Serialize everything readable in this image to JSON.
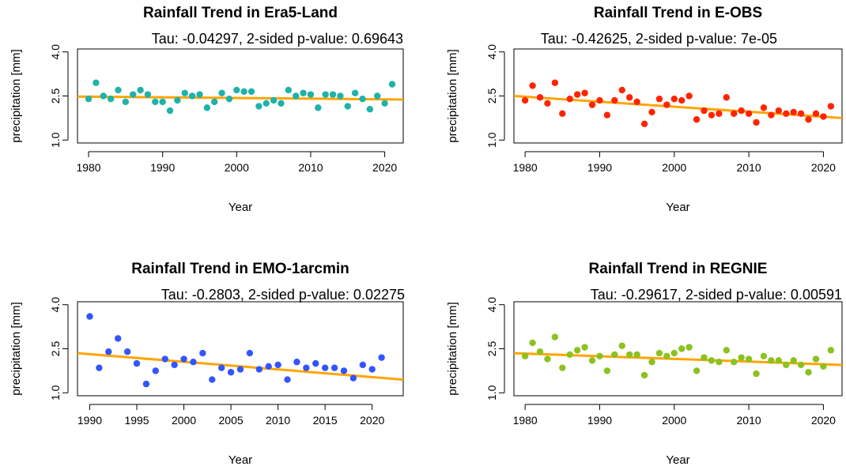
{
  "chart_data": [
    {
      "type": "scatter",
      "title": "Rainfall Trend in Era5-Land",
      "subtitle": "Tau: -0.04297, 2-sided p-value: 0.69643",
      "xlabel": "Year",
      "ylabel": "precipitation [mm]",
      "xlim": [
        1978.5,
        2022.5
      ],
      "ylim": [
        0.9,
        4.1
      ],
      "xticks": [
        "1980",
        "1990",
        "2000",
        "2010",
        "2020"
      ],
      "yticks": [
        "1.0",
        "2.5",
        "4.0"
      ],
      "grid": false,
      "point_color": "#20b2aa",
      "trend_color": "#ffa500",
      "trend": {
        "x": [
          1978.5,
          2022.5
        ],
        "y": [
          2.48,
          2.38
        ]
      },
      "series": [
        {
          "x": [
            1980,
            1981,
            1982,
            1983,
            1984,
            1985,
            1986,
            1987,
            1988,
            1989,
            1990,
            1991,
            1992,
            1993,
            1994,
            1995,
            1996,
            1997,
            1998,
            1999,
            2000,
            2001,
            2002,
            2003,
            2004,
            2005,
            2006,
            2007,
            2008,
            2009,
            2010,
            2011,
            2012,
            2013,
            2014,
            2015,
            2016,
            2017,
            2018,
            2019,
            2020,
            2021
          ],
          "y": [
            2.4,
            2.95,
            2.5,
            2.4,
            2.7,
            2.3,
            2.55,
            2.7,
            2.55,
            2.3,
            2.3,
            2.0,
            2.35,
            2.6,
            2.5,
            2.55,
            2.1,
            2.3,
            2.6,
            2.4,
            2.7,
            2.65,
            2.65,
            2.15,
            2.25,
            2.35,
            2.25,
            2.7,
            2.5,
            2.6,
            2.55,
            2.1,
            2.55,
            2.55,
            2.5,
            2.15,
            2.6,
            2.4,
            2.05,
            2.5,
            2.25,
            2.9
          ]
        }
      ]
    },
    {
      "type": "scatter",
      "title": "Rainfall Trend in E-OBS",
      "subtitle": "Tau: -0.42625, 2-sided p-value: 7e-05",
      "xlabel": "Year",
      "ylabel": "precipitation [mm]",
      "xlim": [
        1978.5,
        2022.5
      ],
      "ylim": [
        0.9,
        4.1
      ],
      "xticks": [
        "1980",
        "1990",
        "2000",
        "2010",
        "2020"
      ],
      "yticks": [
        "1.0",
        "2.5",
        "4.0"
      ],
      "grid": false,
      "point_color": "#ff2400",
      "trend_color": "#ffa500",
      "trend": {
        "x": [
          1978.5,
          2022.5
        ],
        "y": [
          2.5,
          1.75
        ]
      },
      "series": [
        {
          "x": [
            1980,
            1981,
            1982,
            1983,
            1984,
            1985,
            1986,
            1987,
            1988,
            1989,
            1990,
            1991,
            1992,
            1993,
            1994,
            1995,
            1996,
            1997,
            1998,
            1999,
            2000,
            2001,
            2002,
            2003,
            2004,
            2005,
            2006,
            2007,
            2008,
            2009,
            2010,
            2011,
            2012,
            2013,
            2014,
            2015,
            2016,
            2017,
            2018,
            2019,
            2020,
            2021
          ],
          "y": [
            2.35,
            2.85,
            2.45,
            2.25,
            2.95,
            1.9,
            2.4,
            2.55,
            2.6,
            2.2,
            2.35,
            1.85,
            2.35,
            2.7,
            2.45,
            2.3,
            1.55,
            1.95,
            2.4,
            2.2,
            2.4,
            2.35,
            2.5,
            1.7,
            2.0,
            1.85,
            1.9,
            2.45,
            1.9,
            2.0,
            1.9,
            1.6,
            2.1,
            1.85,
            2.0,
            1.9,
            1.95,
            1.9,
            1.7,
            1.9,
            1.8,
            2.15
          ]
        }
      ]
    },
    {
      "type": "scatter",
      "title": "Rainfall Trend in EMO-1arcmin",
      "subtitle": "Tau: -0.2803, 2-sided p-value: 0.02275",
      "xlabel": "Year",
      "ylabel": "precipitation [mm]",
      "xlim": [
        1988.7,
        2023.3
      ],
      "ylim": [
        0.9,
        4.1
      ],
      "xticks": [
        "1990",
        "1995",
        "2000",
        "2005",
        "2010",
        "2015",
        "2020"
      ],
      "yticks": [
        "1.0",
        "2.5",
        "4.0"
      ],
      "grid": false,
      "point_color": "#3355ff",
      "trend_color": "#ffa500",
      "trend": {
        "x": [
          1988.7,
          2023.3
        ],
        "y": [
          2.35,
          1.45
        ]
      },
      "series": [
        {
          "x": [
            1990,
            1991,
            1992,
            1993,
            1994,
            1995,
            1996,
            1997,
            1998,
            1999,
            2000,
            2001,
            2002,
            2003,
            2004,
            2005,
            2006,
            2007,
            2008,
            2009,
            2010,
            2011,
            2012,
            2013,
            2014,
            2015,
            2016,
            2017,
            2018,
            2019,
            2020,
            2021
          ],
          "y": [
            3.6,
            1.85,
            2.4,
            2.85,
            2.4,
            2.0,
            1.3,
            1.75,
            2.15,
            1.95,
            2.15,
            2.05,
            2.35,
            1.45,
            1.85,
            1.7,
            1.8,
            2.35,
            1.8,
            1.9,
            1.95,
            1.45,
            2.05,
            1.85,
            2.0,
            1.85,
            1.85,
            1.75,
            1.5,
            1.95,
            1.8,
            2.2
          ]
        }
      ]
    },
    {
      "type": "scatter",
      "title": "Rainfall Trend in REGNIE",
      "subtitle": "Tau: -0.29617, 2-sided p-value: 0.00591",
      "xlabel": "Year",
      "ylabel": "precipitation [mm]",
      "xlim": [
        1978.5,
        2022.5
      ],
      "ylim": [
        0.9,
        4.1
      ],
      "xticks": [
        "1980",
        "1990",
        "2000",
        "2010",
        "2020"
      ],
      "yticks": [
        "1.0",
        "2.5",
        "4.0"
      ],
      "grid": false,
      "point_color": "#8bc220",
      "trend_color": "#ffa500",
      "trend": {
        "x": [
          1978.5,
          2022.5
        ],
        "y": [
          2.35,
          1.95
        ]
      },
      "series": [
        {
          "x": [
            1980,
            1981,
            1982,
            1983,
            1984,
            1985,
            1986,
            1987,
            1988,
            1989,
            1990,
            1991,
            1992,
            1993,
            1994,
            1995,
            1996,
            1997,
            1998,
            1999,
            2000,
            2001,
            2002,
            2003,
            2004,
            2005,
            2006,
            2007,
            2008,
            2009,
            2010,
            2011,
            2012,
            2013,
            2014,
            2015,
            2016,
            2017,
            2018,
            2019,
            2020,
            2021
          ],
          "y": [
            2.25,
            2.7,
            2.4,
            2.15,
            2.9,
            1.85,
            2.3,
            2.45,
            2.55,
            2.1,
            2.25,
            1.75,
            2.3,
            2.6,
            2.3,
            2.3,
            1.6,
            2.05,
            2.35,
            2.25,
            2.35,
            2.5,
            2.55,
            1.75,
            2.2,
            2.1,
            2.05,
            2.45,
            2.05,
            2.2,
            2.15,
            1.65,
            2.25,
            2.1,
            2.1,
            1.95,
            2.1,
            1.95,
            1.7,
            2.15,
            1.9,
            2.45
          ]
        }
      ]
    }
  ]
}
